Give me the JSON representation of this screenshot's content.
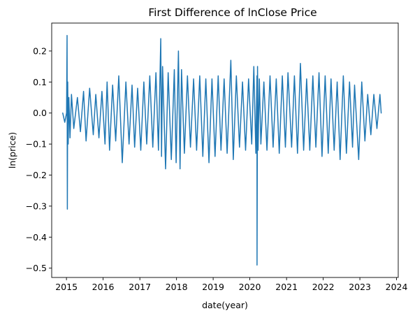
{
  "chart_data": {
    "type": "line",
    "title": "First Difference of lnClose Price",
    "xlabel": "date(year)",
    "ylabel": "ln(price)",
    "xlim": [
      "2014-08-07",
      "2024-01-18"
    ],
    "ylim": [
      -0.53,
      0.29
    ],
    "xticks": [
      "2015",
      "2016",
      "2017",
      "2018",
      "2019",
      "2020",
      "2021",
      "2022",
      "2023",
      "2024"
    ],
    "yticks": [
      "0.2",
      "0.1",
      "0.0",
      "−0.1",
      "−0.2",
      "−0.3",
      "−0.4",
      "−0.5"
    ],
    "ytick_values": [
      0.2,
      0.1,
      0.0,
      -0.1,
      -0.2,
      -0.3,
      -0.4,
      -0.5
    ],
    "grid": false,
    "series": [
      {
        "color": "#1f77b4",
        "x": [
          "2014-11-25",
          "2014-12-15",
          "2015-01-02",
          "2015-01-07",
          "2015-01-10",
          "2015-01-13",
          "2015-01-18",
          "2015-01-25",
          "2015-02-05",
          "2015-02-20",
          "2015-03-15",
          "2015-04-20",
          "2015-05-20",
          "2015-06-20",
          "2015-07-15",
          "2015-08-20",
          "2015-09-25",
          "2015-10-20",
          "2015-11-20",
          "2015-12-20",
          "2016-01-20",
          "2016-02-10",
          "2016-03-05",
          "2016-04-05",
          "2016-05-05",
          "2016-06-05",
          "2016-07-10",
          "2016-08-15",
          "2016-09-15",
          "2016-10-15",
          "2016-11-10",
          "2016-12-10",
          "2017-01-10",
          "2017-02-10",
          "2017-03-10",
          "2017-04-10",
          "2017-05-10",
          "2017-06-10",
          "2017-07-05",
          "2017-07-28",
          "2017-08-05",
          "2017-08-15",
          "2017-09-14",
          "2017-10-10",
          "2017-11-10",
          "2017-12-10",
          "2017-12-28",
          "2018-01-20",
          "2018-02-05",
          "2018-02-20",
          "2018-03-20",
          "2018-04-20",
          "2018-05-20",
          "2018-06-20",
          "2018-07-20",
          "2018-08-20",
          "2018-09-20",
          "2018-10-20",
          "2018-11-20",
          "2018-12-20",
          "2019-01-20",
          "2019-02-20",
          "2019-03-20",
          "2019-04-20",
          "2019-05-20",
          "2019-06-26",
          "2019-07-20",
          "2019-08-20",
          "2019-09-20",
          "2019-10-20",
          "2019-11-20",
          "2019-12-20",
          "2020-01-20",
          "2020-02-10",
          "2020-03-01",
          "2020-03-12",
          "2020-03-13",
          "2020-03-18",
          "2020-03-23",
          "2020-04-05",
          "2020-04-20",
          "2020-05-20",
          "2020-06-20",
          "2020-07-20",
          "2020-08-20",
          "2020-09-20",
          "2020-10-20",
          "2020-11-20",
          "2020-12-20",
          "2021-01-15",
          "2021-02-20",
          "2021-03-20",
          "2021-04-20",
          "2021-05-19",
          "2021-06-20",
          "2021-07-20",
          "2021-08-20",
          "2021-09-20",
          "2021-10-20",
          "2021-11-20",
          "2021-12-20",
          "2022-01-20",
          "2022-02-20",
          "2022-03-20",
          "2022-04-20",
          "2022-05-20",
          "2022-06-18",
          "2022-07-20",
          "2022-08-20",
          "2022-09-20",
          "2022-10-20",
          "2022-11-09",
          "2022-12-20",
          "2023-01-20",
          "2023-02-20",
          "2023-03-20",
          "2023-04-20",
          "2023-05-20",
          "2023-06-20",
          "2023-07-20",
          "2023-08-01"
        ],
        "y": [
          0.0,
          -0.03,
          0.0,
          0.25,
          -0.31,
          0.1,
          -0.1,
          0.05,
          -0.08,
          0.06,
          -0.05,
          0.05,
          -0.06,
          0.07,
          -0.09,
          0.08,
          -0.07,
          0.06,
          -0.08,
          0.07,
          -0.1,
          0.1,
          -0.12,
          0.09,
          -0.09,
          0.12,
          -0.16,
          0.1,
          -0.1,
          0.09,
          -0.11,
          0.08,
          -0.12,
          0.1,
          -0.1,
          0.12,
          -0.11,
          0.13,
          -0.12,
          0.24,
          -0.14,
          0.15,
          -0.18,
          0.13,
          -0.15,
          0.14,
          -0.16,
          0.2,
          -0.18,
          0.14,
          -0.13,
          0.12,
          -0.11,
          0.11,
          -0.12,
          0.12,
          -0.14,
          0.11,
          -0.16,
          0.11,
          -0.14,
          0.12,
          -0.12,
          0.11,
          -0.13,
          0.17,
          -0.15,
          0.12,
          -0.11,
          0.1,
          -0.12,
          0.11,
          -0.1,
          0.15,
          -0.13,
          0.12,
          -0.49,
          0.15,
          -0.12,
          0.11,
          -0.1,
          0.1,
          -0.12,
          0.12,
          -0.11,
          0.11,
          -0.13,
          0.12,
          -0.11,
          0.13,
          -0.11,
          0.12,
          -0.13,
          0.16,
          -0.12,
          0.11,
          -0.12,
          0.12,
          -0.11,
          0.13,
          -0.14,
          0.12,
          -0.13,
          0.11,
          -0.12,
          0.1,
          -0.15,
          0.12,
          -0.13,
          0.1,
          -0.11,
          0.09,
          -0.15,
          0.1,
          -0.09,
          0.06,
          -0.07,
          0.06,
          -0.05,
          0.06,
          0.0
        ]
      }
    ]
  }
}
